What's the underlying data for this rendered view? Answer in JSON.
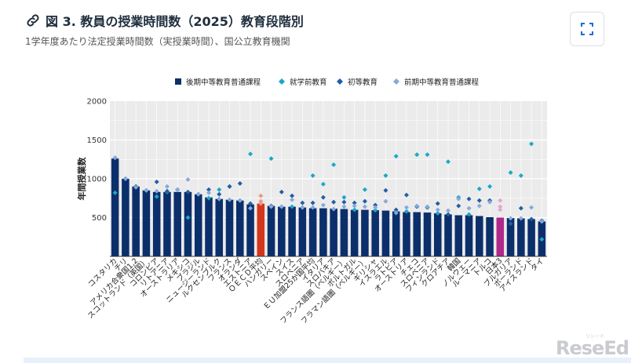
{
  "header": {
    "title": "図 3. 教員の授業時間数（2025）教育段階別",
    "subtitle": "1学年度あたり法定授業時間数（実授業時間）、国公立教育機関",
    "link_icon": "link-icon",
    "expand_icon": "expand-icon"
  },
  "watermark": {
    "text": "ReseEd",
    "small": "リシード"
  },
  "chart_data": {
    "type": "bar",
    "ylabel": "年間授業数",
    "ylim": [
      0,
      2000
    ],
    "yticks": [
      500,
      1000,
      1500,
      2000
    ],
    "grid": true,
    "legend_position": "top",
    "legend": [
      {
        "key": "upper",
        "label": "後期中等教育普通課程",
        "marker": "square",
        "color": "#0b2f6b"
      },
      {
        "key": "pre",
        "label": "就学前教育",
        "marker": "diamond",
        "color": "#1ba7c9"
      },
      {
        "key": "primary",
        "label": "初等教育",
        "marker": "diamond",
        "color": "#1f5fa6"
      },
      {
        "key": "lower",
        "label": "前期中等教育普通課程",
        "marker": "diamond",
        "color": "#88a9dc"
      }
    ],
    "colors": {
      "bar": "#0b2f6b",
      "bar_oecd": "#d4361c",
      "bar_japan": "#b0288a",
      "oecd_markers": "#e59a83",
      "japan_markers": "#e7a5cf"
    },
    "categories": [
      "コスタリカ",
      "チリ",
      "アメリカ合衆国1,2",
      "スコットランド（英国）",
      "コロンビア",
      "リトアニア",
      "オーストラリア",
      "メキシコ",
      "ブラジル",
      "ニュージーランド",
      "ルクセンブルク",
      "フランス",
      "オランダ",
      "エストニア",
      "ＯＥＣＤ平均",
      "ハンガリー",
      "スペイン",
      "スイス",
      "スロベニア",
      "ＥＵ加盟25か国平均",
      "イタリア",
      "スロバキア",
      "フランス語圏（ベルギー）",
      "ポルトガル",
      "フラマン語圏（ベルギー）",
      "ギリシャ",
      "イスラエル",
      "ラトビア",
      "オーストリア",
      "チェコ",
      "スロベニア",
      "フィンランド",
      "クロアチア",
      "韓国",
      "ノルウェー",
      "ルーマニア",
      "トルコ",
      "日本3",
      "ブルガリア",
      "ポーランド",
      "アイスランド",
      "タイ"
    ],
    "highlight": {
      "oecd_index": 14,
      "japan_index": 37
    },
    "series": [
      {
        "name": "後期中等教育普通課程",
        "values": [
          1260,
          1000,
          900,
          850,
          830,
          830,
          830,
          830,
          800,
          760,
          740,
          730,
          720,
          670,
          680,
          650,
          640,
          640,
          630,
          620,
          620,
          615,
          610,
          600,
          600,
          595,
          590,
          580,
          570,
          570,
          565,
          555,
          540,
          530,
          530,
          520,
          505,
          500,
          495,
          490,
          480,
          450
        ]
      },
      {
        "name": "就学前教育",
        "values": [
          820,
          1000,
          900,
          850,
          770,
          830,
          860,
          500,
          800,
          750,
          860,
          900,
          720,
          1320,
          680,
          1260,
          640,
          640,
          630,
          1040,
          930,
          1180,
          760,
          600,
          860,
          595,
          1040,
          1290,
          580,
          1310,
          1310,
          555,
          1220,
          760,
          540,
          870,
          900,
          720,
          1080,
          1040,
          1450,
          220
        ]
      },
      {
        "name": "初等教育",
        "values": [
          1270,
          1000,
          900,
          850,
          960,
          840,
          860,
          830,
          800,
          860,
          800,
          900,
          940,
          680,
          780,
          650,
          830,
          780,
          690,
          690,
          760,
          700,
          700,
          690,
          710,
          660,
          850,
          600,
          790,
          640,
          630,
          680,
          540,
          650,
          740,
          720,
          720,
          640,
          420,
          620,
          480,
          460
        ]
      },
      {
        "name": "前期中等教育普通課程",
        "values": [
          1270,
          1000,
          890,
          850,
          840,
          900,
          860,
          990,
          800,
          820,
          740,
          730,
          720,
          620,
          710,
          640,
          640,
          730,
          630,
          630,
          660,
          610,
          640,
          650,
          640,
          630,
          710,
          560,
          630,
          650,
          640,
          600,
          590,
          740,
          620,
          650,
          700,
          600,
          490,
          490,
          630,
          450
        ]
      }
    ]
  }
}
